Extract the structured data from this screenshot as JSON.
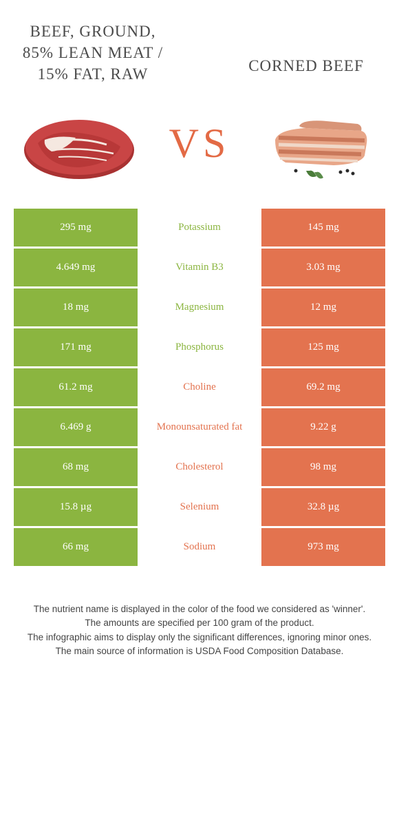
{
  "header": {
    "left_title": "BEEF, GROUND, 85% LEAN MEAT / 15% FAT, RAW",
    "right_title": "CORNED BEEF",
    "vs_label": "VS"
  },
  "colors": {
    "green": "#8bb540",
    "orange": "#e3734f",
    "vs": "#e36a45",
    "background": "#ffffff"
  },
  "nutrients": [
    {
      "name": "Potassium",
      "left": "295 mg",
      "right": "145 mg",
      "winner": "left"
    },
    {
      "name": "Vitamin B3",
      "left": "4.649 mg",
      "right": "3.03 mg",
      "winner": "left"
    },
    {
      "name": "Magnesium",
      "left": "18 mg",
      "right": "12 mg",
      "winner": "left"
    },
    {
      "name": "Phosphorus",
      "left": "171 mg",
      "right": "125 mg",
      "winner": "left"
    },
    {
      "name": "Choline",
      "left": "61.2 mg",
      "right": "69.2 mg",
      "winner": "right"
    },
    {
      "name": "Monounsaturated fat",
      "left": "6.469 g",
      "right": "9.22 g",
      "winner": "right"
    },
    {
      "name": "Cholesterol",
      "left": "68 mg",
      "right": "98 mg",
      "winner": "right"
    },
    {
      "name": "Selenium",
      "left": "15.8 µg",
      "right": "32.8 µg",
      "winner": "right"
    },
    {
      "name": "Sodium",
      "left": "66 mg",
      "right": "973 mg",
      "winner": "right"
    }
  ],
  "footer": {
    "line1": "The nutrient name is displayed in the color of the food we considered as 'winner'.",
    "line2": "The amounts are specified per 100 gram of the product.",
    "line3": "The infographic aims to display only the significant differences, ignoring minor ones.",
    "line4": "The main source of information is USDA Food Composition Database."
  }
}
